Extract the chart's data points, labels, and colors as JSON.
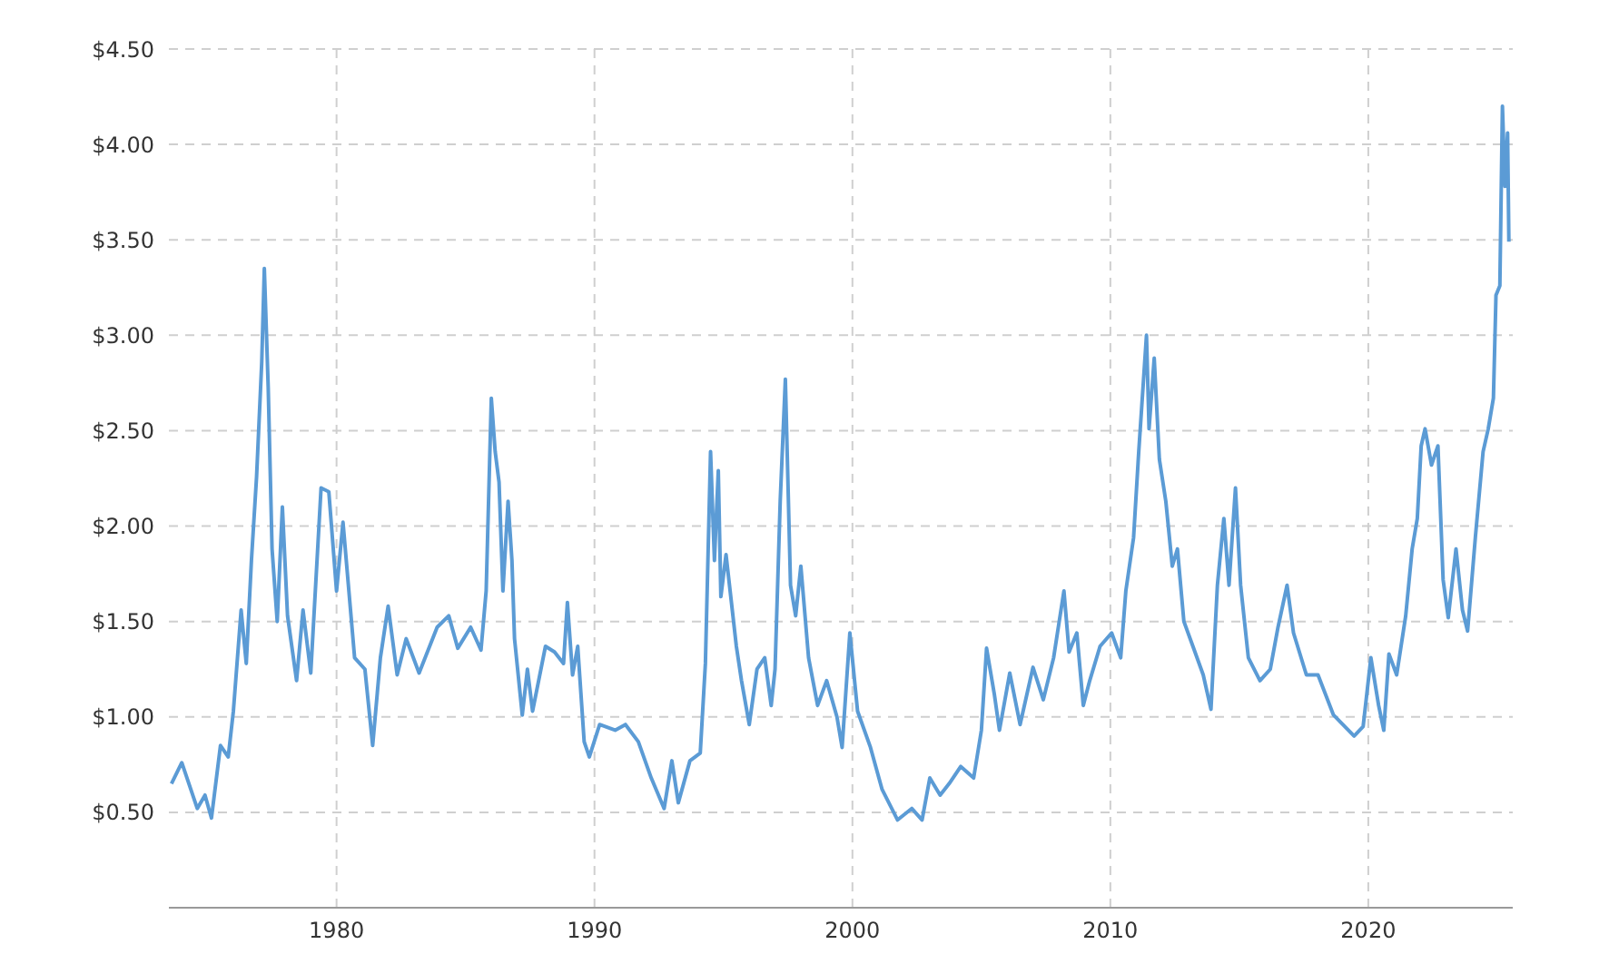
{
  "chart_data": {
    "type": "line",
    "x": [
      1973.6,
      1974.0,
      1974.6,
      1974.9,
      1975.15,
      1975.5,
      1975.8,
      1976.0,
      1976.3,
      1976.5,
      1976.7,
      1976.9,
      1977.1,
      1977.2,
      1977.35,
      1977.5,
      1977.7,
      1977.9,
      1978.1,
      1978.45,
      1978.7,
      1979.0,
      1979.4,
      1979.7,
      1980.0,
      1980.25,
      1980.7,
      1981.1,
      1981.4,
      1981.7,
      1982.0,
      1982.35,
      1982.7,
      1983.2,
      1983.9,
      1984.35,
      1984.7,
      1985.2,
      1985.6,
      1985.8,
      1986.0,
      1986.15,
      1986.3,
      1986.45,
      1986.65,
      1986.8,
      1986.9,
      1987.2,
      1987.4,
      1987.6,
      1988.1,
      1988.45,
      1988.8,
      1988.95,
      1989.15,
      1989.35,
      1989.6,
      1989.8,
      1990.2,
      1990.8,
      1991.2,
      1991.7,
      1992.2,
      1992.7,
      1993.0,
      1993.25,
      1993.7,
      1994.1,
      1994.3,
      1994.5,
      1994.65,
      1994.8,
      1994.9,
      1995.1,
      1995.5,
      1995.7,
      1996.0,
      1996.3,
      1996.6,
      1996.85,
      1997.0,
      1997.2,
      1997.4,
      1997.6,
      1997.8,
      1998.0,
      1998.3,
      1998.65,
      1999.0,
      1999.4,
      1999.6,
      1999.9,
      2000.2,
      2000.7,
      2001.15,
      2001.75,
      2002.3,
      2002.7,
      2003.0,
      2003.4,
      2003.75,
      2004.2,
      2004.7,
      2005.0,
      2005.2,
      2005.5,
      2005.7,
      2006.1,
      2006.5,
      2007.0,
      2007.4,
      2007.8,
      2008.2,
      2008.4,
      2008.7,
      2008.95,
      2009.2,
      2009.6,
      2010.05,
      2010.4,
      2010.6,
      2010.9,
      2011.1,
      2011.4,
      2011.5,
      2011.7,
      2011.9,
      2012.15,
      2012.4,
      2012.6,
      2012.85,
      2013.2,
      2013.6,
      2013.9,
      2014.15,
      2014.4,
      2014.6,
      2014.85,
      2015.05,
      2015.35,
      2015.8,
      2016.2,
      2016.5,
      2016.85,
      2017.1,
      2017.6,
      2018.05,
      2018.65,
      2019.45,
      2019.8,
      2020.1,
      2020.4,
      2020.6,
      2020.8,
      2021.1,
      2021.45,
      2021.7,
      2021.9,
      2022.05,
      2022.2,
      2022.45,
      2022.7,
      2022.9,
      2023.1,
      2023.4,
      2023.65,
      2023.85,
      2024.15,
      2024.45,
      2024.65,
      2024.85,
      2024.95,
      2025.1,
      2025.2,
      2025.3,
      2025.4,
      2025.45
    ],
    "series": [
      {
        "color": "#5b9bd5",
        "values": [
          0.65,
          0.76,
          0.52,
          0.59,
          0.47,
          0.85,
          0.79,
          1.03,
          1.56,
          1.28,
          1.82,
          2.26,
          2.86,
          3.35,
          2.73,
          1.88,
          1.5,
          2.1,
          1.53,
          1.19,
          1.56,
          1.23,
          2.2,
          2.18,
          1.66,
          2.02,
          1.31,
          1.25,
          0.85,
          1.31,
          1.58,
          1.22,
          1.41,
          1.23,
          1.47,
          1.53,
          1.36,
          1.47,
          1.35,
          1.66,
          2.67,
          2.39,
          2.23,
          1.66,
          2.13,
          1.82,
          1.41,
          1.01,
          1.25,
          1.03,
          1.37,
          1.34,
          1.28,
          1.6,
          1.22,
          1.37,
          0.87,
          0.79,
          0.96,
          0.93,
          0.96,
          0.87,
          0.68,
          0.52,
          0.77,
          0.55,
          0.77,
          0.81,
          1.28,
          2.39,
          1.82,
          2.29,
          1.63,
          1.85,
          1.37,
          1.19,
          0.96,
          1.25,
          1.31,
          1.06,
          1.25,
          2.13,
          2.77,
          1.69,
          1.53,
          1.79,
          1.31,
          1.06,
          1.19,
          1.0,
          0.84,
          1.44,
          1.03,
          0.84,
          0.62,
          0.46,
          0.52,
          0.46,
          0.68,
          0.59,
          0.65,
          0.74,
          0.68,
          0.93,
          1.36,
          1.12,
          0.93,
          1.23,
          0.96,
          1.26,
          1.09,
          1.31,
          1.66,
          1.34,
          1.44,
          1.06,
          1.19,
          1.37,
          1.44,
          1.31,
          1.66,
          1.94,
          2.39,
          3.0,
          2.51,
          2.88,
          2.35,
          2.13,
          1.79,
          1.88,
          1.5,
          1.37,
          1.22,
          1.04,
          1.69,
          2.04,
          1.69,
          2.2,
          1.69,
          1.31,
          1.19,
          1.25,
          1.47,
          1.69,
          1.44,
          1.22,
          1.22,
          1.01,
          0.9,
          0.95,
          1.31,
          1.06,
          0.93,
          1.33,
          1.22,
          1.53,
          1.88,
          2.04,
          2.42,
          2.51,
          2.32,
          2.42,
          1.72,
          1.52,
          1.88,
          1.56,
          1.45,
          1.94,
          2.39,
          2.51,
          2.67,
          3.21,
          3.26,
          4.2,
          3.78,
          4.06,
          3.49
        ]
      }
    ],
    "xlim": [
      1973.5,
      2025.6
    ],
    "xticks": [
      1980,
      1990,
      2000,
      2010,
      2020
    ],
    "ylim": [
      0,
      4.5
    ],
    "yticks": [
      {
        "value": 0.5,
        "label": "$0.50"
      },
      {
        "value": 1,
        "label": "$1.00"
      },
      {
        "value": 1.5,
        "label": "$1.50"
      },
      {
        "value": 2,
        "label": "$2.00"
      },
      {
        "value": 2.5,
        "label": "$2.50"
      },
      {
        "value": 3,
        "label": "$3.00"
      },
      {
        "value": 3.5,
        "label": "$3.50"
      },
      {
        "value": 4,
        "label": "$4.00"
      },
      {
        "value": 4.5,
        "label": "$4.50"
      }
    ],
    "grid": true,
    "legend": false,
    "marker": "none",
    "line_style": "solid"
  }
}
